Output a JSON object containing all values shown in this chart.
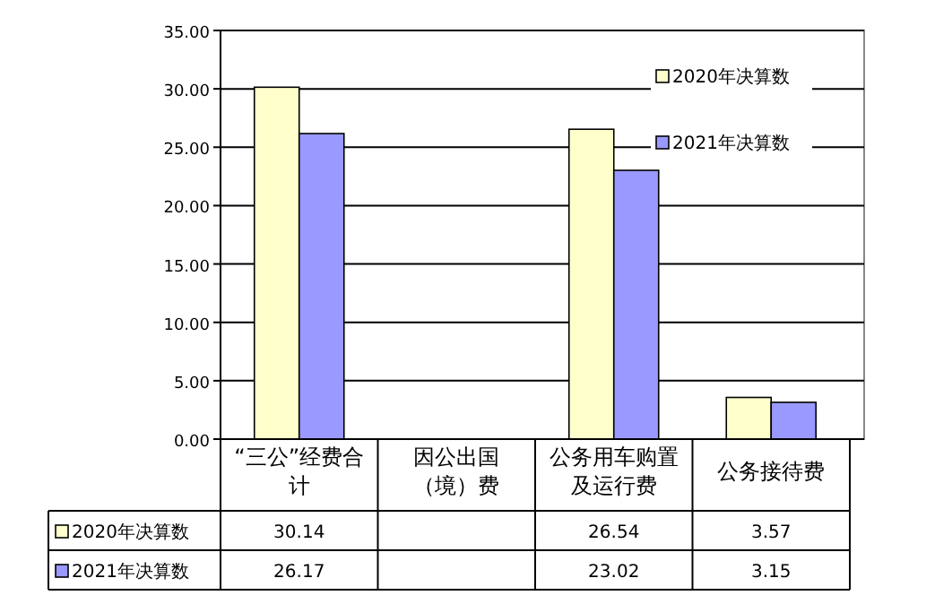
{
  "chart_data": {
    "type": "bar",
    "categories": [
      "“三公”经费合计",
      "因公出国（境）费",
      "公务用车购置及运行费",
      "公务接待费"
    ],
    "series": [
      {
        "name": "2020年决算数",
        "color": "#ffffcc",
        "values": [
          30.14,
          null,
          26.54,
          3.57
        ]
      },
      {
        "name": "2021年决算数",
        "color": "#9999ff",
        "values": [
          26.17,
          null,
          23.02,
          3.15
        ]
      }
    ],
    "ylim": [
      0,
      35
    ],
    "yticks": [
      {
        "value": 0,
        "label": "0.00"
      },
      {
        "value": 5,
        "label": "5.00"
      },
      {
        "value": 10,
        "label": "10.00"
      },
      {
        "value": 15,
        "label": "15.00"
      },
      {
        "value": 20,
        "label": "20.00"
      },
      {
        "value": 25,
        "label": "25.00"
      },
      {
        "value": 30,
        "label": "30.00"
      },
      {
        "value": 35,
        "label": "35.00"
      }
    ],
    "grid": "y",
    "legend": "top right",
    "data_labels": true
  }
}
